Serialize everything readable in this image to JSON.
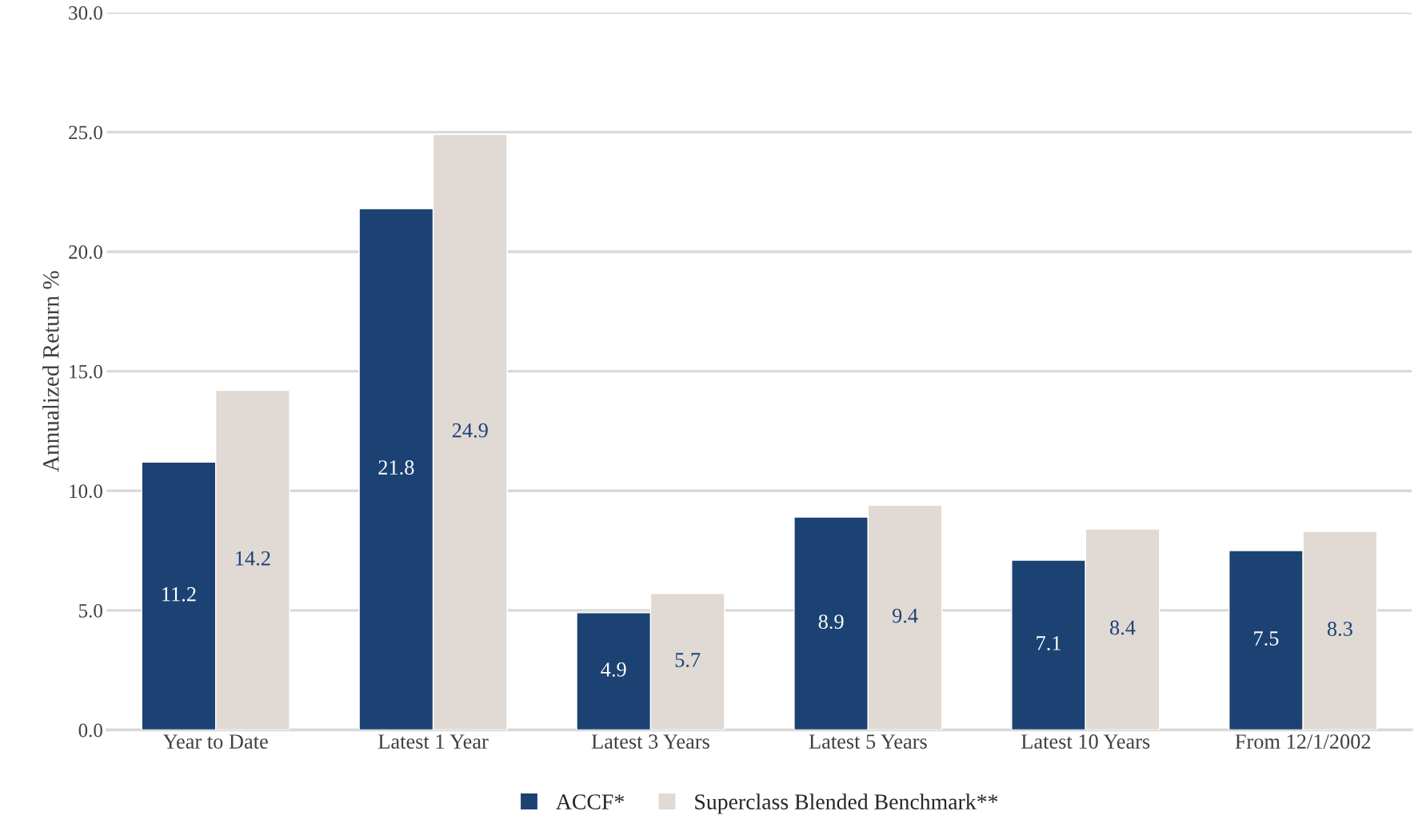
{
  "chart_data": {
    "type": "bar",
    "ylabel": "Annualized Return %",
    "categories": [
      "Year to Date",
      "Latest 1 Year",
      "Latest 3 Years",
      "Latest 5 Years",
      "Latest 10 Years",
      "From 12/1/2002"
    ],
    "series": [
      {
        "name": "ACCF*",
        "color": "#1b4272",
        "values": [
          11.2,
          21.8,
          4.9,
          8.9,
          7.1,
          7.5
        ]
      },
      {
        "name": "Superclass Blended Benchmark**",
        "color": "#e0d9d4",
        "values": [
          14.2,
          24.9,
          5.7,
          9.4,
          8.4,
          8.3
        ]
      }
    ],
    "ylim": [
      0,
      30
    ],
    "yticks": [
      {
        "value": 0,
        "label": "0.0"
      },
      {
        "value": 5,
        "label": "5.0"
      },
      {
        "value": 10,
        "label": "10.0"
      },
      {
        "value": 15,
        "label": "15.0"
      },
      {
        "value": 20,
        "label": "20.0"
      },
      {
        "value": 25,
        "label": "25.0"
      },
      {
        "value": 30,
        "label": "30.0"
      }
    ],
    "grid": "y",
    "legend": "bottom",
    "data_labels": true
  }
}
